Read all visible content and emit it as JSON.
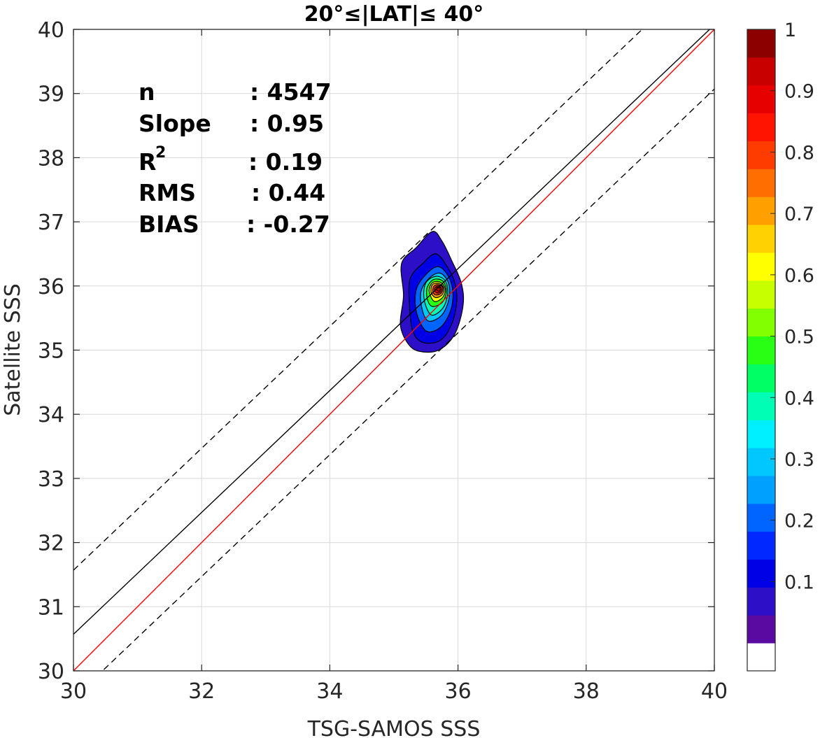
{
  "chart_data": {
    "type": "contour",
    "title": "20°≤|LAT|≤ 40°",
    "xlabel": "TSG-SAMOS SSS",
    "ylabel": "Satellite SSS",
    "xlim": [
      30,
      40
    ],
    "ylim": [
      30,
      40
    ],
    "xticks": [
      30,
      32,
      34,
      36,
      38,
      40
    ],
    "yticks": [
      30,
      31,
      32,
      33,
      34,
      35,
      36,
      37,
      38,
      39,
      40
    ],
    "grid": true,
    "lines": [
      {
        "kind": "one-to-one",
        "color": "#ff0000",
        "style": "solid",
        "points": [
          [
            30,
            30
          ],
          [
            40,
            40
          ]
        ]
      },
      {
        "kind": "regression",
        "color": "#000000",
        "style": "solid",
        "points": [
          [
            30,
            30.57
          ],
          [
            40,
            40.07
          ]
        ]
      },
      {
        "kind": "upper-bound",
        "color": "#000000",
        "style": "dashed",
        "points": [
          [
            30,
            31.57
          ],
          [
            40,
            41.07
          ]
        ]
      },
      {
        "kind": "lower-bound",
        "color": "#000000",
        "style": "dashed",
        "points": [
          [
            30,
            29.57
          ],
          [
            40,
            39.07
          ]
        ]
      }
    ],
    "density": {
      "peak": [
        35.7,
        35.95
      ],
      "contours": [
        {
          "level": 0.05,
          "points": [
            [
              35.4,
              34.98
            ],
            [
              35.7,
              35.0
            ],
            [
              35.95,
              35.25
            ],
            [
              36.08,
              35.7
            ],
            [
              36.05,
              36.05
            ],
            [
              35.9,
              36.4
            ],
            [
              35.75,
              36.7
            ],
            [
              35.6,
              36.85
            ],
            [
              35.35,
              36.6
            ],
            [
              35.12,
              36.35
            ],
            [
              35.15,
              35.85
            ],
            [
              35.1,
              35.4
            ],
            [
              35.22,
              35.1
            ]
          ]
        },
        {
          "level": 0.1,
          "points": [
            [
              35.45,
              35.12
            ],
            [
              35.72,
              35.15
            ],
            [
              35.9,
              35.4
            ],
            [
              35.98,
              35.75
            ],
            [
              35.95,
              36.05
            ],
            [
              35.82,
              36.32
            ],
            [
              35.65,
              36.5
            ],
            [
              35.45,
              36.35
            ],
            [
              35.25,
              36.1
            ],
            [
              35.25,
              35.6
            ],
            [
              35.3,
              35.28
            ]
          ]
        },
        {
          "level": 0.2,
          "points": [
            [
              35.5,
              35.3
            ],
            [
              35.72,
              35.35
            ],
            [
              35.88,
              35.6
            ],
            [
              35.92,
              35.9
            ],
            [
              35.85,
              36.15
            ],
            [
              35.7,
              36.3
            ],
            [
              35.52,
              36.2
            ],
            [
              35.35,
              35.95
            ],
            [
              35.35,
              35.6
            ]
          ]
        },
        {
          "level": 0.3,
          "points": [
            [
              35.55,
              35.45
            ],
            [
              35.75,
              35.55
            ],
            [
              35.86,
              35.8
            ],
            [
              35.85,
              36.05
            ],
            [
              35.72,
              36.2
            ],
            [
              35.55,
              36.12
            ],
            [
              35.42,
              35.9
            ],
            [
              35.45,
              35.6
            ]
          ]
        },
        {
          "level": 0.4,
          "points": [
            [
              35.58,
              35.55
            ],
            [
              35.76,
              35.65
            ],
            [
              35.84,
              35.88
            ],
            [
              35.8,
              36.08
            ],
            [
              35.66,
              36.15
            ],
            [
              35.5,
              36.05
            ],
            [
              35.47,
              35.8
            ]
          ]
        },
        {
          "level": 0.5,
          "points": [
            [
              35.6,
              35.68
            ],
            [
              35.76,
              35.75
            ],
            [
              35.82,
              35.93
            ],
            [
              35.76,
              36.08
            ],
            [
              35.62,
              36.1
            ],
            [
              35.52,
              35.98
            ],
            [
              35.52,
              35.8
            ]
          ]
        },
        {
          "level": 0.6,
          "points": [
            [
              35.63,
              35.76
            ],
            [
              35.76,
              35.82
            ],
            [
              35.8,
              35.96
            ],
            [
              35.72,
              36.06
            ],
            [
              35.6,
              36.05
            ],
            [
              35.55,
              35.92
            ]
          ]
        },
        {
          "level": 0.7,
          "points": [
            [
              35.65,
              35.82
            ],
            [
              35.75,
              35.86
            ],
            [
              35.78,
              35.97
            ],
            [
              35.7,
              36.04
            ],
            [
              35.6,
              36.02
            ],
            [
              35.58,
              35.9
            ]
          ]
        },
        {
          "level": 0.8,
          "points": [
            [
              35.66,
              35.86
            ],
            [
              35.74,
              35.89
            ],
            [
              35.76,
              35.98
            ],
            [
              35.69,
              36.02
            ],
            [
              35.62,
              35.99
            ],
            [
              35.61,
              35.9
            ]
          ]
        },
        {
          "level": 0.9,
          "points": [
            [
              35.68,
              35.89
            ],
            [
              35.73,
              35.91
            ],
            [
              35.74,
              35.97
            ],
            [
              35.69,
              36.0
            ],
            [
              35.64,
              35.97
            ],
            [
              35.64,
              35.92
            ]
          ]
        },
        {
          "level": 0.95,
          "points": [
            [
              35.69,
              35.92
            ],
            [
              35.72,
              35.93
            ],
            [
              35.72,
              35.97
            ],
            [
              35.69,
              35.98
            ],
            [
              35.66,
              35.96
            ]
          ]
        }
      ]
    },
    "stats": {
      "n": {
        "label": "n",
        "value": ": 4547"
      },
      "slope": {
        "label": "Slope",
        "value": ": 0.95"
      },
      "r2": {
        "label": "R",
        "sup": "2",
        "value": ": 0.19"
      },
      "rms": {
        "label": "RMS",
        "value": ": 0.44"
      },
      "bias": {
        "label": "BIAS",
        "value": ": -0.27"
      }
    },
    "colorbar": {
      "ticks": [
        "1",
        "0.9",
        "0.8",
        "0.7",
        "0.6",
        "0.5",
        "0.4",
        "0.3",
        "0.2",
        "0.1"
      ],
      "tick_values": [
        1,
        0.9,
        0.8,
        0.7,
        0.6,
        0.5,
        0.4,
        0.3,
        0.2,
        0.1
      ],
      "colors": [
        "#ffffff",
        "#5a0aa0",
        "#2d0fc8",
        "#0000e6",
        "#0028ff",
        "#0064ff",
        "#00a0ff",
        "#00c8ff",
        "#00f0ff",
        "#00ffb4",
        "#00ff64",
        "#28ff14",
        "#82ff00",
        "#c8ff00",
        "#ffff00",
        "#ffd200",
        "#ffa000",
        "#ff6e00",
        "#ff3c00",
        "#ff1400",
        "#e60000",
        "#c80000",
        "#8c0000"
      ]
    }
  }
}
